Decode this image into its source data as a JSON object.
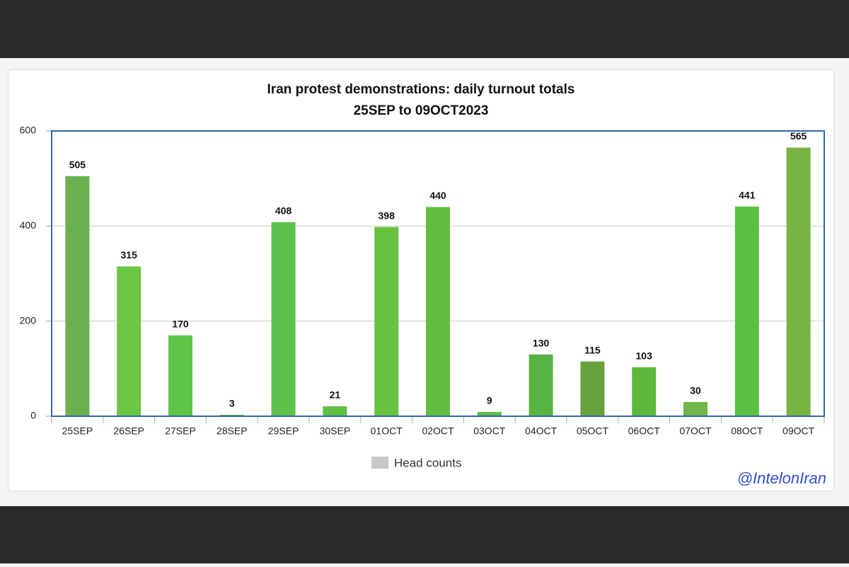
{
  "chart_data": {
    "type": "bar",
    "title": "Iran protest demonstrations: daily turnout totals",
    "subtitle": "25SEP to 09OCT2023",
    "categories": [
      "25SEP",
      "26SEP",
      "27SEP",
      "28SEP",
      "29SEP",
      "30SEP",
      "01OCT",
      "02OCT",
      "03OCT",
      "04OCT",
      "05OCT",
      "06OCT",
      "07OCT",
      "08OCT",
      "09OCT"
    ],
    "series": [
      {
        "name": "Head counts",
        "color": "#c8c8c8",
        "values": [
          505,
          315,
          170,
          3,
          408,
          21,
          398,
          440,
          9,
          130,
          115,
          103,
          30,
          441,
          565
        ],
        "colors": [
          "#6ab04c",
          "#6cc644",
          "#5ec44a",
          "#5ec44a",
          "#5cc24c",
          "#5fbf47",
          "#66c23f",
          "#62bd3f",
          "#5cbb4a",
          "#58b442",
          "#67a33d",
          "#5fb83b",
          "#72b64a",
          "#5cbf45",
          "#78b43f"
        ]
      }
    ],
    "ylim": [
      0,
      600
    ],
    "yticks": [
      0,
      200,
      400,
      600
    ],
    "grid": true,
    "watermark": "@IntelonIran"
  }
}
